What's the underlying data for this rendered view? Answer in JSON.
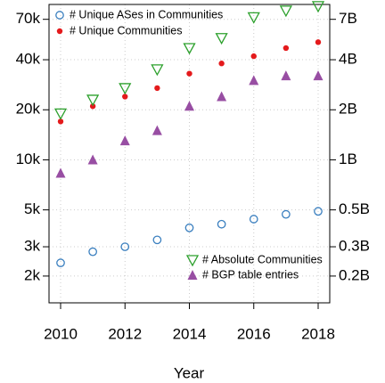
{
  "chart_data": {
    "type": "scatter",
    "x_label": "Year",
    "x": [
      2010,
      2011,
      2012,
      2013,
      2014,
      2015,
      2016,
      2017,
      2018
    ],
    "xlim": [
      2009.64,
      2018.36
    ],
    "xticks": [
      2010,
      2012,
      2014,
      2016,
      2018
    ],
    "ylim": [
      1380,
      86000
    ],
    "yticks": [
      {
        "value": 2000,
        "label": "2k"
      },
      {
        "value": 3000,
        "label": "3k"
      },
      {
        "value": 5000,
        "label": "5k"
      },
      {
        "value": 10000,
        "label": "10k"
      },
      {
        "value": 20000,
        "label": "20k"
      },
      {
        "value": 40000,
        "label": "40k"
      },
      {
        "value": 70000,
        "label": "70k"
      }
    ],
    "y2lim": [
      0.138,
      8.6
    ],
    "y2ticks": [
      {
        "value": 0.2,
        "label": "0.2B"
      },
      {
        "value": 0.3,
        "label": "0.3B"
      },
      {
        "value": 0.5,
        "label": "0.5B"
      },
      {
        "value": 1,
        "label": "1B"
      },
      {
        "value": 2,
        "label": "2B"
      },
      {
        "value": 4,
        "label": "4B"
      },
      {
        "value": 7,
        "label": "7B"
      }
    ],
    "log_y": true,
    "grid": true,
    "series": [
      {
        "name": "# Unique ASes in Communities",
        "color": "#3a7fbf",
        "marker": "circle-open",
        "legend": "top-left",
        "values": [
          2400,
          2800,
          3000,
          3300,
          3900,
          4100,
          4400,
          4700,
          4900
        ]
      },
      {
        "name": "# Unique Communities",
        "color": "#e41a1c",
        "marker": "dot",
        "legend": "top-left",
        "values": [
          17000,
          21000,
          24000,
          27000,
          33000,
          38000,
          42000,
          47000,
          51000
        ]
      },
      {
        "name": "# Absolute Communities",
        "color": "#2ca02c",
        "marker": "triangle-down-open",
        "legend": "bottom-right",
        "axis": "y2",
        "values": [
          1.9,
          2.3,
          2.7,
          3.5,
          4.7,
          5.4,
          7.2,
          7.9,
          8.4
        ]
      },
      {
        "name": "# BGP table entries",
        "color": "#984ea3",
        "marker": "triangle-up",
        "legend": "bottom-right",
        "axis": "y2",
        "values": [
          0.83,
          1.0,
          1.3,
          1.5,
          2.1,
          2.4,
          3.0,
          3.2,
          3.2
        ]
      }
    ]
  }
}
